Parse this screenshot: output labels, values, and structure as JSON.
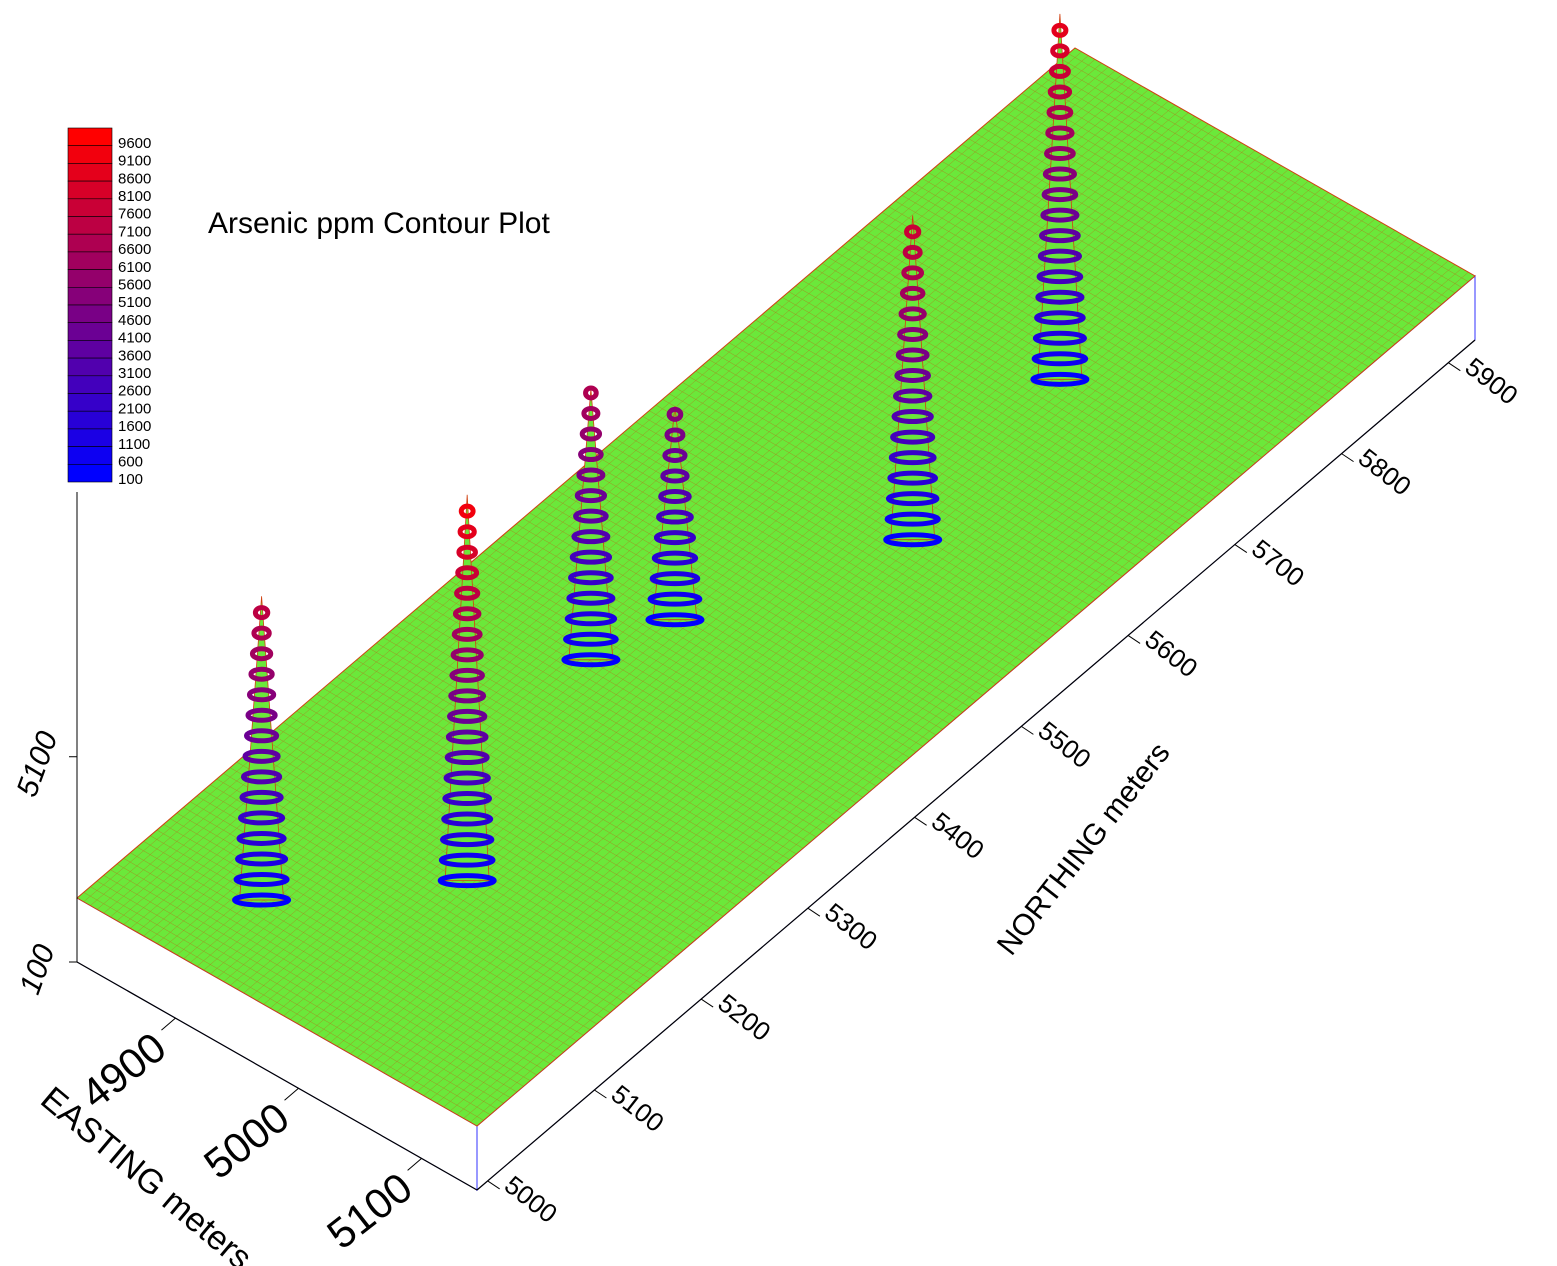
{
  "chart_data": {
    "type": "surface3d",
    "title": "Arsenic ppm Contour Plot",
    "xlabel": "EASTING meters",
    "ylabel": "NORTHING meters",
    "xlim": [
      4820,
      5145
    ],
    "xticks": [
      4900,
      5000,
      5100
    ],
    "ylim": [
      4990,
      5925
    ],
    "yticks": [
      5000,
      5100,
      5200,
      5300,
      5400,
      5500,
      5600,
      5700,
      5800,
      5900
    ],
    "zlim": [
      100,
      9600
    ],
    "zticks": [
      100,
      5100
    ],
    "levels": [
      9600,
      9100,
      8600,
      8100,
      7600,
      7100,
      6600,
      6100,
      5600,
      5100,
      4600,
      4100,
      3600,
      3100,
      2600,
      2100,
      1600,
      1100,
      600,
      100
    ],
    "colorscale": [
      "#0000ff",
      "#ff0000"
    ],
    "surface_color": "#6be83a",
    "mesh_color": "#d04010",
    "peaks": [
      {
        "easting": 4911,
        "northing": 5058,
        "value": 7500
      },
      {
        "easting": 5000,
        "northing": 5148,
        "value": 9500
      },
      {
        "easting": 4934,
        "northing": 5340,
        "value": 6700
      },
      {
        "easting": 4952,
        "northing": 5398,
        "value": 5300
      },
      {
        "easting": 5022,
        "northing": 5540,
        "value": 8000
      },
      {
        "easting": 5002,
        "northing": 5701,
        "value": 9000
      }
    ]
  }
}
